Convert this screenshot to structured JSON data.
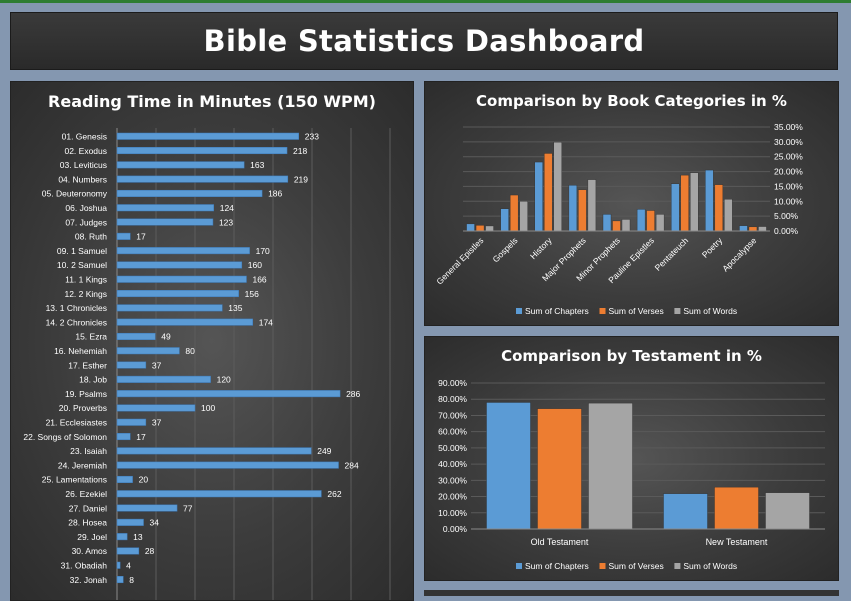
{
  "dashboard": {
    "title": "Bible Statistics Dashboard"
  },
  "colors": {
    "chapters": "#5b9bd5",
    "verses": "#ed7d31",
    "words": "#a5a5a5",
    "bar": "#5b9bd5"
  },
  "chart_data": [
    {
      "type": "bar",
      "orientation": "horizontal",
      "title": "Reading Time in Minutes (150 WPM)",
      "categories": [
        "01. Genesis",
        "02. Exodus",
        "03. Leviticus",
        "04. Numbers",
        "05. Deuteronomy",
        "06. Joshua",
        "07. Judges",
        "08. Ruth",
        "09. 1 Samuel",
        "10. 2 Samuel",
        "11. 1 Kings",
        "12. 2 Kings",
        "13. 1 Chronicles",
        "14. 2 Chronicles",
        "15. Ezra",
        "16. Nehemiah",
        "17. Esther",
        "18. Job",
        "19. Psalms",
        "20. Proverbs",
        "21. Ecclesiastes",
        "22. Songs of Solomon",
        "23. Isaiah",
        "24. Jeremiah",
        "25. Lamentations",
        "26. Ezekiel",
        "27. Daniel",
        "28. Hosea",
        "29. Joel",
        "30. Amos",
        "31. Obadiah",
        "32. Jonah"
      ],
      "values": [
        233,
        218,
        163,
        219,
        186,
        124,
        123,
        17,
        170,
        160,
        166,
        156,
        135,
        174,
        49,
        80,
        37,
        120,
        286,
        100,
        37,
        17,
        249,
        284,
        20,
        262,
        77,
        34,
        13,
        28,
        4,
        8
      ],
      "grid": true
    },
    {
      "type": "bar",
      "title": "Comparison by Book Categories in %",
      "categories": [
        "General Epistles",
        "Gospels",
        "History",
        "Major Prophets",
        "Minor Prophets",
        "Pauline Epistles",
        "Pentateuch",
        "Poetry",
        "Apocalypse"
      ],
      "series": [
        {
          "name": "Sum of Chapters",
          "values": [
            2.4,
            7.5,
            23.2,
            15.4,
            5.6,
            7.3,
            15.9,
            20.5,
            1.8
          ]
        },
        {
          "name": "Sum of Verses",
          "values": [
            1.9,
            12.1,
            26.1,
            13.9,
            3.4,
            6.9,
            18.8,
            15.6,
            1.4
          ]
        },
        {
          "name": "Sum of Words",
          "values": [
            1.7,
            10.0,
            29.9,
            17.3,
            3.9,
            5.6,
            19.6,
            10.7,
            1.5
          ]
        }
      ],
      "ylim": [
        0,
        35
      ],
      "yticks": [
        "0.00%",
        "5.00%",
        "10.00%",
        "15.00%",
        "20.00%",
        "25.00%",
        "30.00%",
        "35.00%"
      ],
      "legend": "bottom",
      "grid": true
    },
    {
      "type": "bar",
      "title": "Comparison by Testament in %",
      "categories": [
        "Old Testament",
        "New Testament"
      ],
      "series": [
        {
          "name": "Sum of Chapters",
          "values": [
            78.0,
            21.8
          ]
        },
        {
          "name": "Sum of Verses",
          "values": [
            74.2,
            25.8
          ]
        },
        {
          "name": "Sum of Words",
          "values": [
            77.6,
            22.4
          ]
        }
      ],
      "ylim": [
        0,
        90
      ],
      "yticks": [
        "0.00%",
        "10.00%",
        "20.00%",
        "30.00%",
        "40.00%",
        "50.00%",
        "60.00%",
        "70.00%",
        "80.00%",
        "90.00%"
      ],
      "legend": "bottom",
      "grid": true
    }
  ]
}
